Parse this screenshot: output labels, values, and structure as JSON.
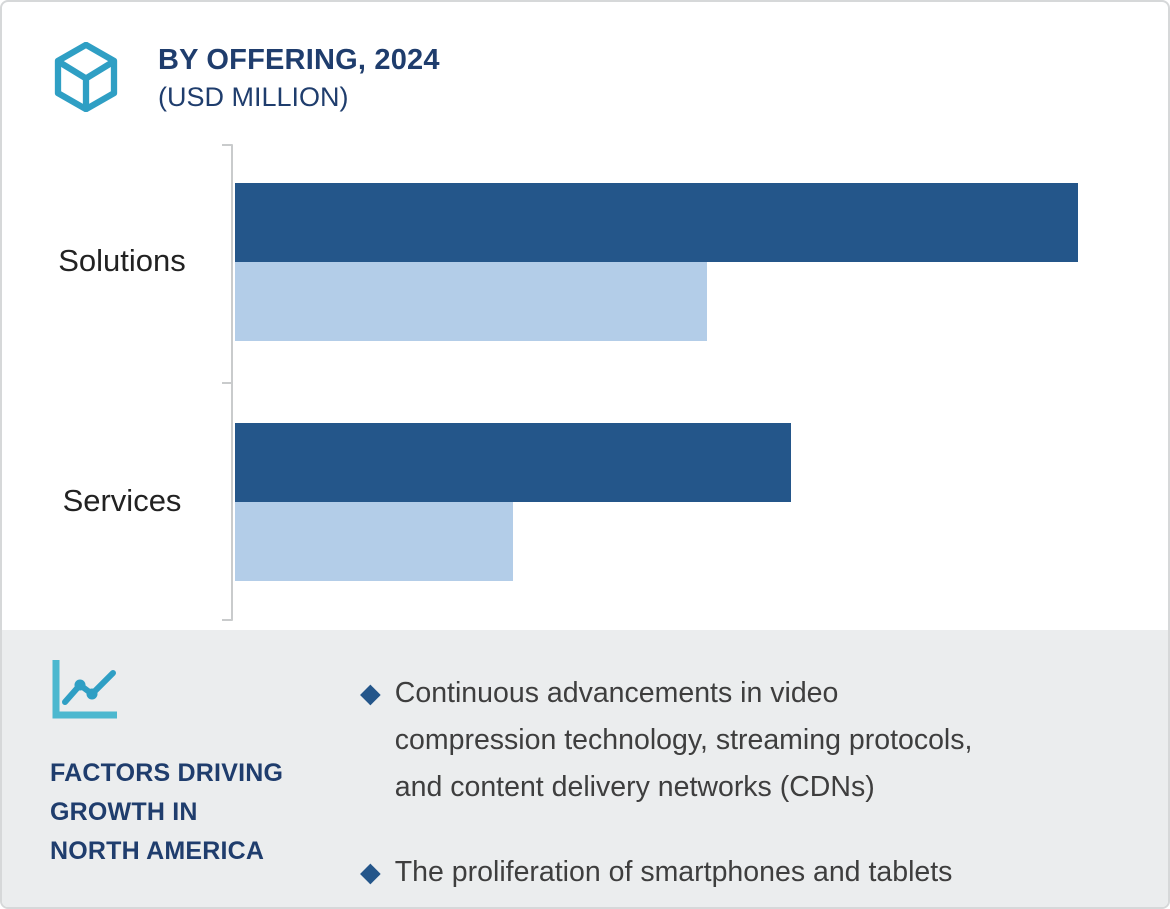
{
  "header": {
    "title": "BY OFFERING, 2024",
    "subtitle": "(USD MILLION)"
  },
  "chart_data": {
    "type": "bar",
    "orientation": "horizontal",
    "title": "BY OFFERING, 2024 (USD MILLION)",
    "categories": [
      "Solutions",
      "Services"
    ],
    "series": [
      {
        "name": "dark-blue-bar",
        "color": "#24568a",
        "values_pct_of_max": [
          100,
          66
        ]
      },
      {
        "name": "light-blue-bar",
        "color": "#b3cde8",
        "values_pct_of_max": [
          56,
          33
        ]
      }
    ],
    "xlabel": "",
    "ylabel": "",
    "axis_value_labels_shown": false,
    "grid": false,
    "legend": "none",
    "note": "No numeric axis or data labels are rendered in the image; bar lengths are relative (percent of longest bar)."
  },
  "factors": {
    "heading": "FACTORS DRIVING\nGROWTH IN\nNORTH AMERICA",
    "bullet_marker": "◆",
    "bullets": [
      "Continuous advancements in video\ncompression technology, streaming protocols,\nand content delivery networks (CDNs)",
      "The proliferation of smartphones and tablets"
    ]
  },
  "colors": {
    "dark_bar": "#24568a",
    "light_bar": "#b3cde8",
    "accent_teal": "#2f9fc4",
    "navy_text": "#1f3d6d",
    "panel_bg": "#ebedee",
    "axis_gray": "#c9cbcc"
  }
}
